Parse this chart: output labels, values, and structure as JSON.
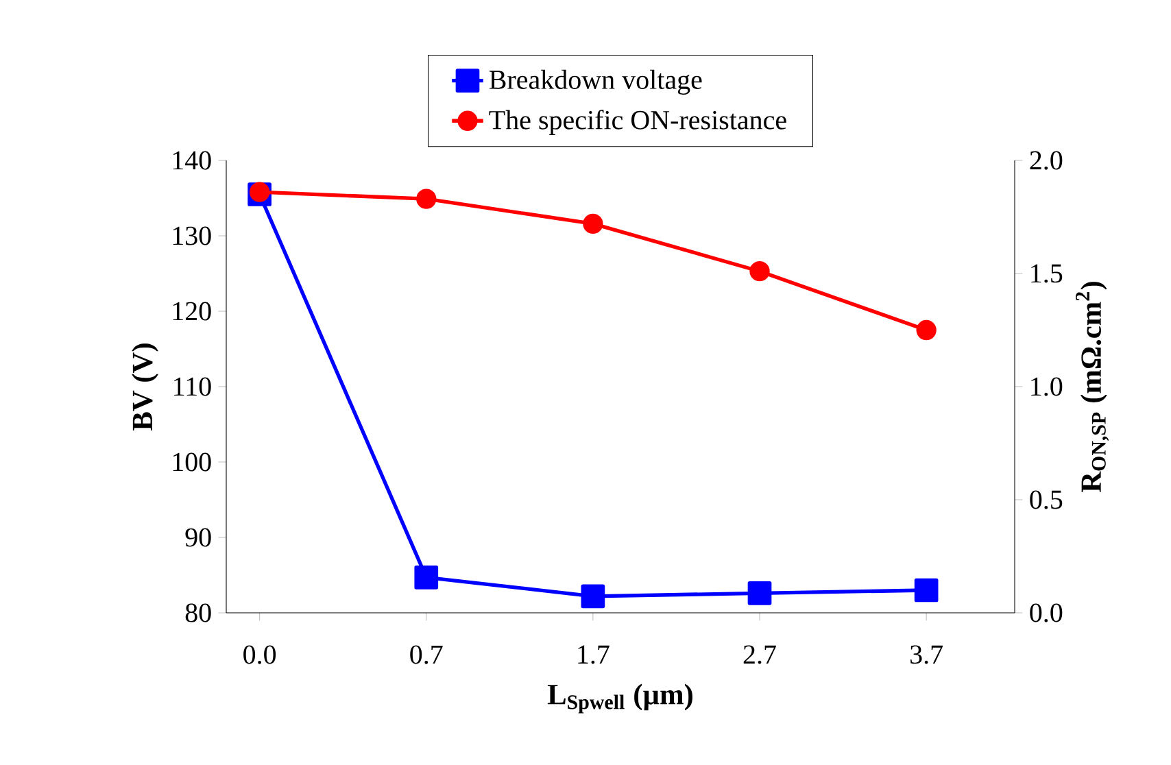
{
  "chart_data": {
    "type": "line",
    "categories": [
      "0.0",
      "0.7",
      "1.7",
      "2.7",
      "3.7"
    ],
    "xlabel": "L$_{Spwell}$ (µm)",
    "ylabel": "BV (V)",
    "y2label": "R$_{ON,SP}$ (mΩ.cm$^{2}$)",
    "series": [
      {
        "name": "Breakdown voltage",
        "color": "#0000ff",
        "marker": "square",
        "values": [
          135.5,
          84.7,
          82.2,
          82.6,
          83.0
        ]
      },
      {
        "name": "The specific ON-resistance",
        "color": "#ff0000",
        "marker": "circle",
        "axis": "y2",
        "values": [
          1.86,
          1.83,
          1.72,
          1.51,
          1.25
        ]
      }
    ],
    "ylim": [
      80,
      140
    ],
    "yticks": [
      80,
      90,
      100,
      110,
      120,
      130,
      140
    ],
    "y2lim": [
      0,
      2.0
    ],
    "y2ticks": [
      {
        "value": 0,
        "label": "0.0"
      },
      {
        "value": 0.5,
        "label": "0.5"
      },
      {
        "value": 1.0,
        "label": "1.0"
      },
      {
        "value": 1.5,
        "label": "1.5"
      },
      {
        "value": 2.0,
        "label": "2.0"
      }
    ],
    "legend": "top",
    "grid": false,
    "line_style": "solid"
  }
}
